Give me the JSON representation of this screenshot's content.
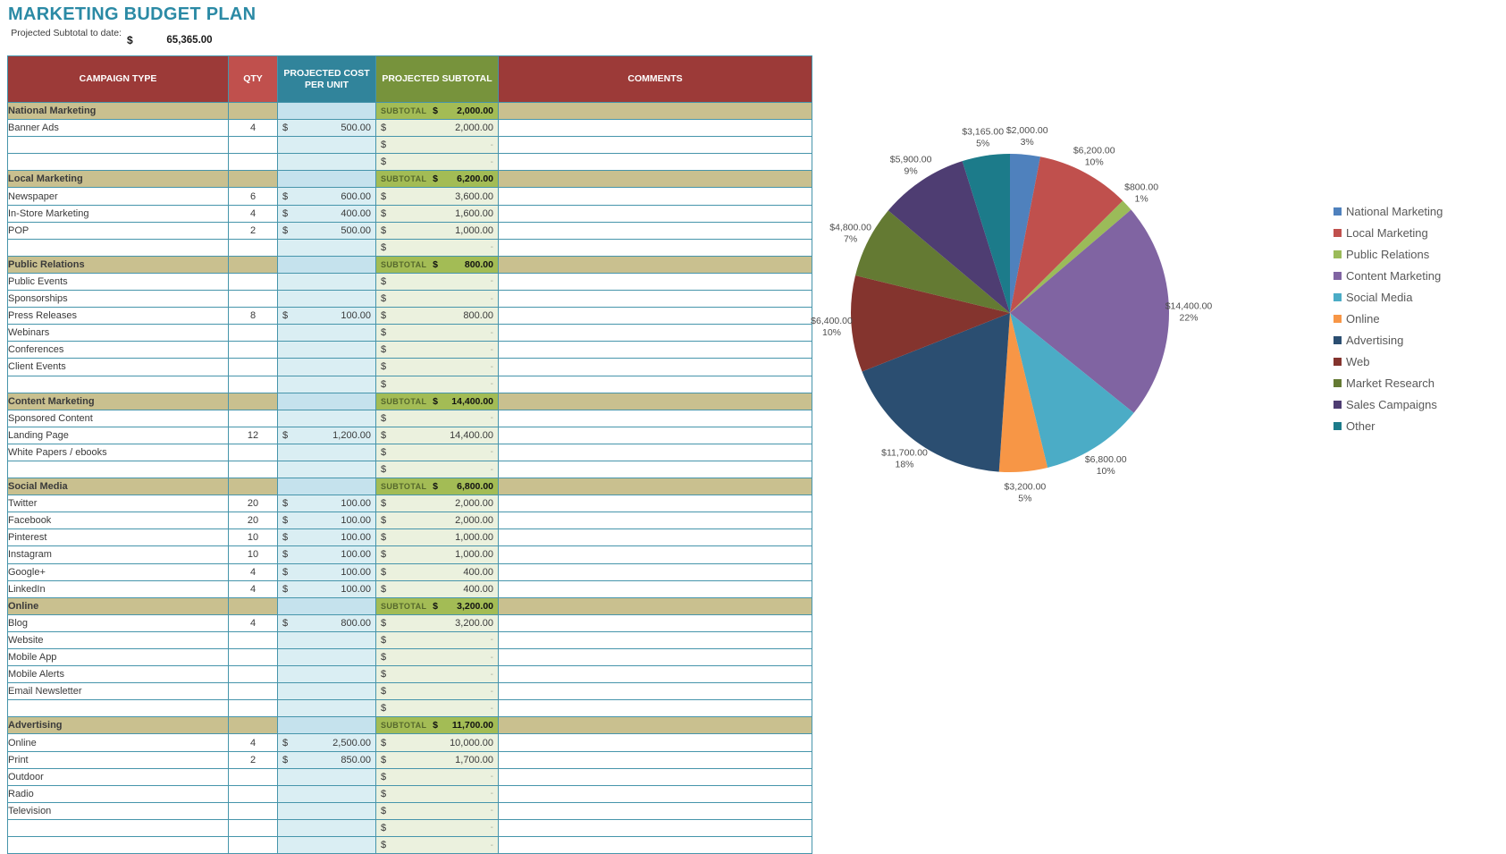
{
  "title": "MARKETING BUDGET PLAN",
  "summary": {
    "label": "Projected Subtotal to date:",
    "currency": "$",
    "value": "65,365.00"
  },
  "table": {
    "headers": [
      "CAMPAIGN TYPE",
      "QTY",
      "PROJECTED COST PER UNIT",
      "PROJECTED SUBTOTAL",
      "COMMENTS"
    ],
    "subtotal_label": "SUBTOTAL",
    "currency": "$",
    "empty_value": "-",
    "sections": [
      {
        "name": "National Marketing",
        "subtotal": "2,000.00",
        "rows": [
          {
            "label": "Banner Ads",
            "qty": "4",
            "unit_cost": "500.00",
            "subtotal": "2,000.00"
          },
          {
            "label": "",
            "qty": "",
            "unit_cost": "",
            "subtotal": ""
          },
          {
            "label": "",
            "qty": "",
            "unit_cost": "",
            "subtotal": ""
          }
        ]
      },
      {
        "name": "Local Marketing",
        "subtotal": "6,200.00",
        "rows": [
          {
            "label": "Newspaper",
            "qty": "6",
            "unit_cost": "600.00",
            "subtotal": "3,600.00"
          },
          {
            "label": "In-Store Marketing",
            "qty": "4",
            "unit_cost": "400.00",
            "subtotal": "1,600.00"
          },
          {
            "label": "POP",
            "qty": "2",
            "unit_cost": "500.00",
            "subtotal": "1,000.00"
          },
          {
            "label": "",
            "qty": "",
            "unit_cost": "",
            "subtotal": ""
          }
        ]
      },
      {
        "name": "Public Relations",
        "subtotal": "800.00",
        "rows": [
          {
            "label": "Public Events",
            "qty": "",
            "unit_cost": "",
            "subtotal": ""
          },
          {
            "label": "Sponsorships",
            "qty": "",
            "unit_cost": "",
            "subtotal": ""
          },
          {
            "label": "Press Releases",
            "qty": "8",
            "unit_cost": "100.00",
            "subtotal": "800.00"
          },
          {
            "label": "Webinars",
            "qty": "",
            "unit_cost": "",
            "subtotal": ""
          },
          {
            "label": "Conferences",
            "qty": "",
            "unit_cost": "",
            "subtotal": ""
          },
          {
            "label": "Client Events",
            "qty": "",
            "unit_cost": "",
            "subtotal": ""
          },
          {
            "label": "",
            "qty": "",
            "unit_cost": "",
            "subtotal": ""
          }
        ]
      },
      {
        "name": "Content Marketing",
        "subtotal": "14,400.00",
        "rows": [
          {
            "label": "Sponsored Content",
            "qty": "",
            "unit_cost": "",
            "subtotal": ""
          },
          {
            "label": "Landing Page",
            "qty": "12",
            "unit_cost": "1,200.00",
            "subtotal": "14,400.00"
          },
          {
            "label": "White Papers / ebooks",
            "qty": "",
            "unit_cost": "",
            "subtotal": ""
          },
          {
            "label": "",
            "qty": "",
            "unit_cost": "",
            "subtotal": ""
          }
        ]
      },
      {
        "name": "Social Media",
        "subtotal": "6,800.00",
        "rows": [
          {
            "label": "Twitter",
            "qty": "20",
            "unit_cost": "100.00",
            "subtotal": "2,000.00"
          },
          {
            "label": "Facebook",
            "qty": "20",
            "unit_cost": "100.00",
            "subtotal": "2,000.00"
          },
          {
            "label": "Pinterest",
            "qty": "10",
            "unit_cost": "100.00",
            "subtotal": "1,000.00"
          },
          {
            "label": "Instagram",
            "qty": "10",
            "unit_cost": "100.00",
            "subtotal": "1,000.00"
          },
          {
            "label": "Google+",
            "qty": "4",
            "unit_cost": "100.00",
            "subtotal": "400.00"
          },
          {
            "label": "LinkedIn",
            "qty": "4",
            "unit_cost": "100.00",
            "subtotal": "400.00"
          }
        ]
      },
      {
        "name": "Online",
        "subtotal": "3,200.00",
        "rows": [
          {
            "label": "Blog",
            "qty": "4",
            "unit_cost": "800.00",
            "subtotal": "3,200.00"
          },
          {
            "label": "Website",
            "qty": "",
            "unit_cost": "",
            "subtotal": ""
          },
          {
            "label": "Mobile App",
            "qty": "",
            "unit_cost": "",
            "subtotal": ""
          },
          {
            "label": "Mobile Alerts",
            "qty": "",
            "unit_cost": "",
            "subtotal": ""
          },
          {
            "label": "Email Newsletter",
            "qty": "",
            "unit_cost": "",
            "subtotal": ""
          },
          {
            "label": "",
            "qty": "",
            "unit_cost": "",
            "subtotal": ""
          }
        ]
      },
      {
        "name": "Advertising",
        "subtotal": "11,700.00",
        "rows": [
          {
            "label": "Online",
            "qty": "4",
            "unit_cost": "2,500.00",
            "subtotal": "10,000.00"
          },
          {
            "label": "Print",
            "qty": "2",
            "unit_cost": "850.00",
            "subtotal": "1,700.00"
          },
          {
            "label": "Outdoor",
            "qty": "",
            "unit_cost": "",
            "subtotal": ""
          },
          {
            "label": "Radio",
            "qty": "",
            "unit_cost": "",
            "subtotal": ""
          },
          {
            "label": "Television",
            "qty": "",
            "unit_cost": "",
            "subtotal": ""
          },
          {
            "label": "",
            "qty": "",
            "unit_cost": "",
            "subtotal": ""
          },
          {
            "label": "",
            "qty": "",
            "unit_cost": "",
            "subtotal": ""
          }
        ]
      }
    ]
  },
  "chart_data": {
    "type": "pie",
    "start_angle": "top",
    "direction": "clockwise",
    "legend_position": "right",
    "total": 65365,
    "series": [
      {
        "name": "National Marketing",
        "value": 2000,
        "value_label": "$2,000.00",
        "pct_label": "3%",
        "color": "#4F81BD"
      },
      {
        "name": "Local Marketing",
        "value": 6200,
        "value_label": "$6,200.00",
        "pct_label": "10%",
        "color": "#C0504D"
      },
      {
        "name": "Public Relations",
        "value": 800,
        "value_label": "$800.00",
        "pct_label": "1%",
        "color": "#9BBB59"
      },
      {
        "name": "Content Marketing",
        "value": 14400,
        "value_label": "$14,400.00",
        "pct_label": "22%",
        "color": "#8064A2"
      },
      {
        "name": "Social Media",
        "value": 6800,
        "value_label": "$6,800.00",
        "pct_label": "10%",
        "color": "#4BACC6"
      },
      {
        "name": "Online",
        "value": 3200,
        "value_label": "$3,200.00",
        "pct_label": "5%",
        "color": "#F79646"
      },
      {
        "name": "Advertising",
        "value": 11700,
        "value_label": "$11,700.00",
        "pct_label": "18%",
        "color": "#2B4E71"
      },
      {
        "name": "Web",
        "value": 6400,
        "value_label": "$6,400.00",
        "pct_label": "10%",
        "color": "#84342E"
      },
      {
        "name": "Market Research",
        "value": 4800,
        "value_label": "$4,800.00",
        "pct_label": "7%",
        "color": "#647A33"
      },
      {
        "name": "Sales Campaigns",
        "value": 5900,
        "value_label": "$5,900.00",
        "pct_label": "9%",
        "color": "#4E3D72"
      },
      {
        "name": "Other",
        "value": 3165,
        "value_label": "$3,165.00",
        "pct_label": "5%",
        "color": "#1C7B8A"
      }
    ]
  },
  "colors": {
    "title": "#2B8AA5",
    "grid": "#4695AB",
    "header_maroon": "#9C3A38",
    "header_red": "#C0504D",
    "header_teal": "#31849B",
    "header_green": "#77933C",
    "section_bg": "#C9C08F",
    "subtotal_bg": "#A3BC55",
    "subtotal_label": "#55672C",
    "cost_bg": "#DAEEF3",
    "cost_bg_section": "#C5E2ED",
    "subtotal_cell_bg": "#EBF1DE"
  }
}
